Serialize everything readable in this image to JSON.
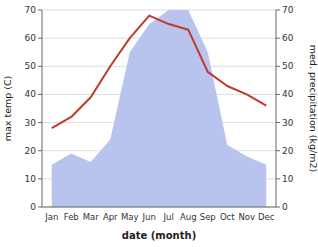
{
  "chart_data": {
    "type": "line",
    "xlabel": "date (month)",
    "ylabel": "max temp (C)",
    "y2label": "med. precipitation (kg/m2)",
    "categories": [
      "Jan",
      "Feb",
      "Mar",
      "Apr",
      "May",
      "Jun",
      "Jul",
      "Aug",
      "Sep",
      "Oct",
      "Nov",
      "Dec"
    ],
    "series": [
      {
        "type": "line",
        "color": "#c0392b",
        "values": [
          28,
          32,
          39,
          50,
          60,
          68,
          65,
          63,
          48,
          43,
          40,
          36
        ]
      },
      {
        "type": "area",
        "axis": "y2",
        "color": "#b8c4ee",
        "values": [
          15,
          19,
          16,
          24,
          55,
          65,
          70,
          70,
          55,
          22,
          18,
          15
        ]
      }
    ],
    "ylim": [
      0,
      70
    ],
    "yticks": [
      0,
      10,
      20,
      30,
      40,
      50,
      60,
      70
    ],
    "y2lim": [
      0,
      70
    ],
    "y2ticks": [
      0,
      10,
      20,
      30,
      40,
      50,
      60,
      70
    ],
    "grid": true
  }
}
